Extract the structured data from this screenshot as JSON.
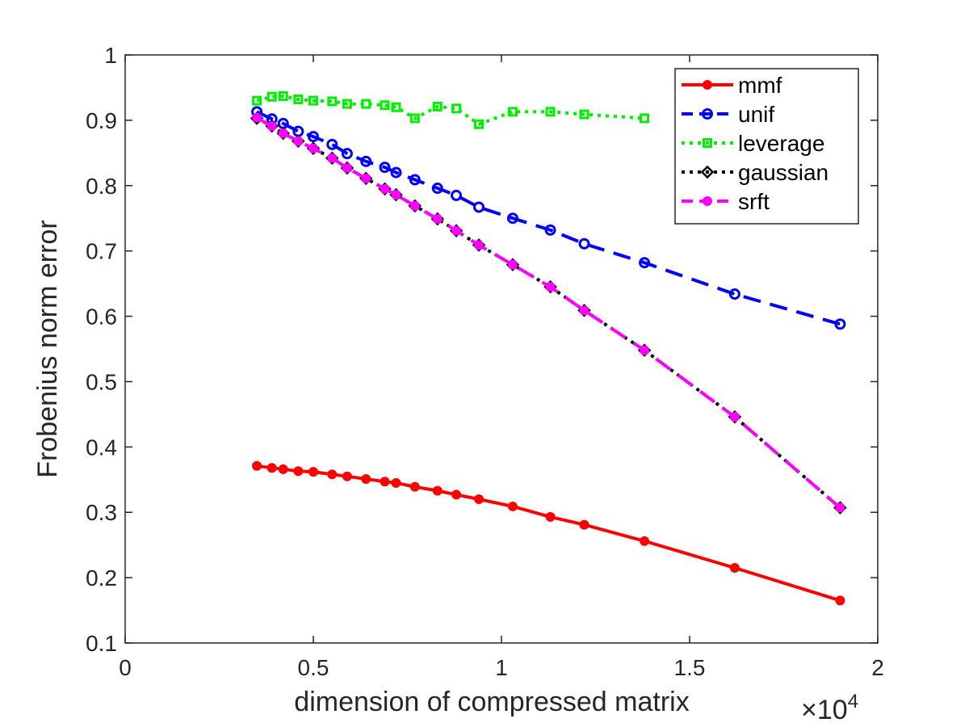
{
  "chart_data": {
    "type": "line",
    "title": "",
    "xlabel": "dimension of compressed matrix",
    "ylabel": "Frobenius norm error",
    "x_exponent_label": "×10",
    "x_exponent_power": "4",
    "xlim": [
      0,
      2
    ],
    "ylim": [
      0.1,
      1
    ],
    "xticks": [
      0,
      0.5,
      1,
      1.5,
      2
    ],
    "xtick_labels": [
      "0",
      "0.5",
      "1",
      "1.5",
      "2"
    ],
    "yticks": [
      0.1,
      0.2,
      0.3,
      0.4,
      0.5,
      0.6,
      0.7,
      0.8,
      0.9,
      1
    ],
    "ytick_labels": [
      "0.1",
      "0.2",
      "0.3",
      "0.4",
      "0.5",
      "0.6",
      "0.7",
      "0.8",
      "0.9",
      "1"
    ],
    "grid": false,
    "legend_position": "top-right",
    "series": [
      {
        "name": "mmf",
        "color": "#ff0000",
        "dash": "solid",
        "marker": "dot",
        "x": [
          0.35,
          0.39,
          0.42,
          0.46,
          0.5,
          0.55,
          0.59,
          0.64,
          0.69,
          0.72,
          0.77,
          0.83,
          0.88,
          0.94,
          1.03,
          1.13,
          1.22,
          1.38,
          1.62,
          1.9
        ],
        "y": [
          0.371,
          0.368,
          0.366,
          0.363,
          0.362,
          0.358,
          0.355,
          0.351,
          0.347,
          0.345,
          0.339,
          0.333,
          0.327,
          0.32,
          0.309,
          0.293,
          0.281,
          0.256,
          0.215,
          0.165
        ]
      },
      {
        "name": "unif",
        "color": "#0000ff",
        "dash": "dashed",
        "marker": "circle",
        "x": [
          0.35,
          0.39,
          0.42,
          0.46,
          0.5,
          0.55,
          0.59,
          0.64,
          0.69,
          0.72,
          0.77,
          0.83,
          0.88,
          0.94,
          1.03,
          1.13,
          1.22,
          1.38,
          1.62,
          1.9
        ],
        "y": [
          0.913,
          0.902,
          0.895,
          0.883,
          0.875,
          0.863,
          0.849,
          0.837,
          0.828,
          0.82,
          0.809,
          0.796,
          0.785,
          0.767,
          0.75,
          0.732,
          0.711,
          0.682,
          0.634,
          0.588
        ]
      },
      {
        "name": "leverage",
        "color": "#00ee00",
        "dash": "dotted",
        "marker": "square",
        "x": [
          0.35,
          0.39,
          0.42,
          0.46,
          0.5,
          0.55,
          0.59,
          0.64,
          0.69,
          0.72,
          0.77,
          0.83,
          0.88,
          0.94,
          1.03,
          1.13,
          1.22,
          1.38
        ],
        "y": [
          0.93,
          0.936,
          0.937,
          0.932,
          0.93,
          0.929,
          0.925,
          0.925,
          0.923,
          0.92,
          0.903,
          0.921,
          0.918,
          0.894,
          0.913,
          0.913,
          0.909,
          0.903
        ]
      },
      {
        "name": "gaussian",
        "color": "#000000",
        "dash": "dotted",
        "marker": "diamond",
        "x": [
          0.35,
          0.39,
          0.42,
          0.46,
          0.5,
          0.55,
          0.59,
          0.64,
          0.69,
          0.72,
          0.77,
          0.83,
          0.88,
          0.94,
          1.03,
          1.13,
          1.22,
          1.38,
          1.62,
          1.9
        ],
        "y": [
          0.903,
          0.891,
          0.88,
          0.868,
          0.857,
          0.842,
          0.827,
          0.811,
          0.795,
          0.786,
          0.769,
          0.749,
          0.731,
          0.709,
          0.679,
          0.645,
          0.609,
          0.548,
          0.446,
          0.307
        ]
      },
      {
        "name": "srft",
        "color": "#ff00ff",
        "dash": "dashed",
        "marker": "dot",
        "x": [
          0.35,
          0.39,
          0.42,
          0.46,
          0.5,
          0.55,
          0.59,
          0.64,
          0.69,
          0.72,
          0.77,
          0.83,
          0.88,
          0.94,
          1.03,
          1.13,
          1.22,
          1.38,
          1.62,
          1.9
        ],
        "y": [
          0.904,
          0.891,
          0.88,
          0.868,
          0.857,
          0.842,
          0.827,
          0.811,
          0.795,
          0.786,
          0.769,
          0.749,
          0.731,
          0.709,
          0.679,
          0.645,
          0.609,
          0.548,
          0.446,
          0.307
        ]
      }
    ]
  }
}
